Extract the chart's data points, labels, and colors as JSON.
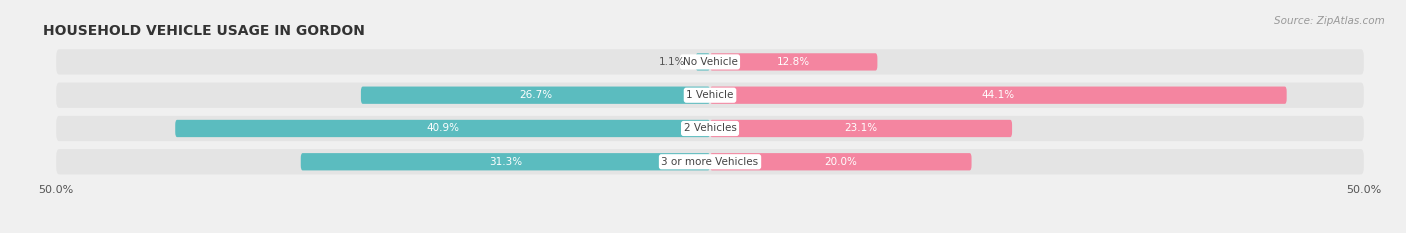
{
  "title": "HOUSEHOLD VEHICLE USAGE IN GORDON",
  "source": "Source: ZipAtlas.com",
  "categories": [
    "No Vehicle",
    "1 Vehicle",
    "2 Vehicles",
    "3 or more Vehicles"
  ],
  "owner_values": [
    1.1,
    26.7,
    40.9,
    31.3
  ],
  "renter_values": [
    12.8,
    44.1,
    23.1,
    20.0
  ],
  "owner_color": "#5bbcbf",
  "renter_color": "#f485a0",
  "xlim": [
    -50,
    50
  ],
  "background_color": "#f0f0f0",
  "row_bg_color": "#e4e4e4",
  "title_fontsize": 10,
  "label_fontsize": 8,
  "source_fontsize": 7.5
}
